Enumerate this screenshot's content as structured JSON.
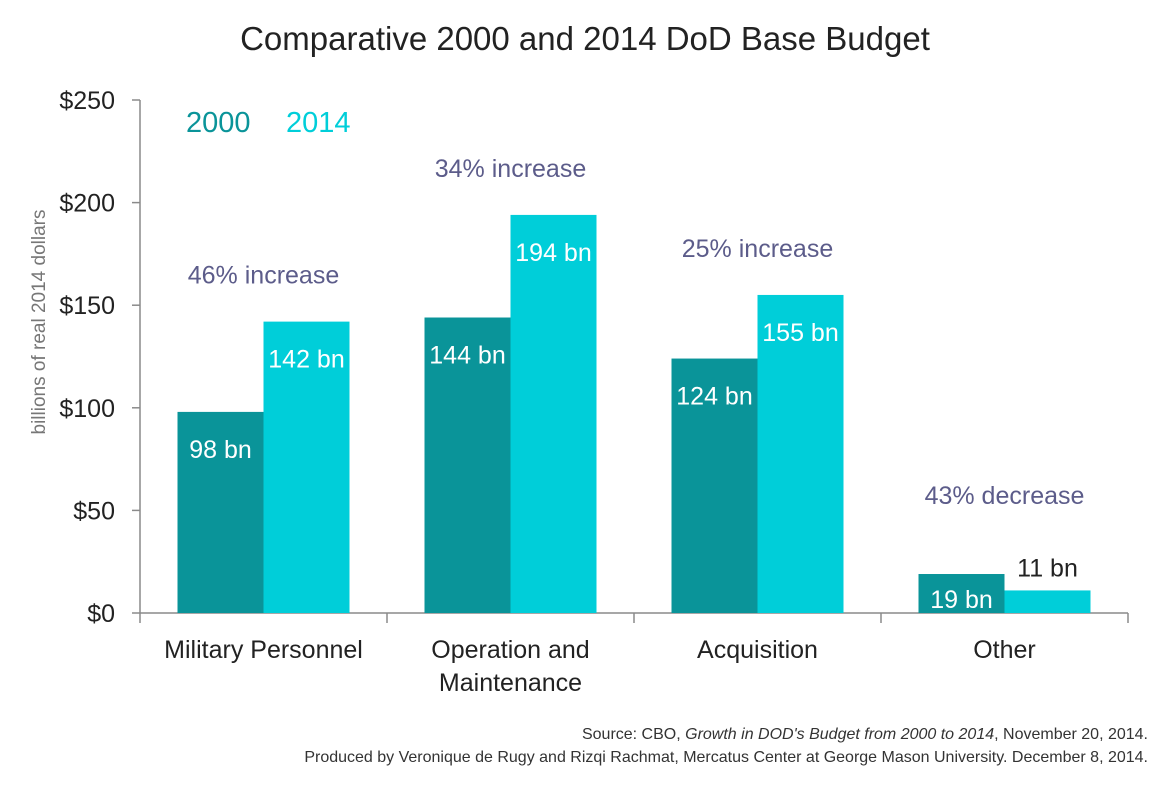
{
  "chart_data": {
    "type": "bar",
    "title": "Comparative 2000 and 2014 DoD Base Budget",
    "ylabel": "billions of real 2014 dollars",
    "xlabel": "",
    "ylim": [
      0,
      250
    ],
    "yticks": [
      0,
      50,
      100,
      150,
      200,
      250
    ],
    "ytick_labels": [
      "$0",
      "$50",
      "$100",
      "$150",
      "$200",
      "$250"
    ],
    "categories": [
      "Military Personnel",
      "Operation and\nMaintenance",
      "Acquisition",
      "Other"
    ],
    "series": [
      {
        "name": "2000",
        "values": [
          98,
          144,
          124,
          19
        ],
        "labels": [
          "98 bn",
          "144 bn",
          "124 bn",
          "19 bn"
        ],
        "color": "#0a9499"
      },
      {
        "name": "2014",
        "values": [
          142,
          194,
          155,
          11
        ],
        "labels": [
          "142 bn",
          "194 bn",
          "155 bn",
          "11 bn"
        ],
        "color": "#00ced9"
      }
    ],
    "annotations": [
      "46% increase",
      "34% increase",
      "25% increase",
      "43% decrease"
    ],
    "annotation_color": "#5c5c8a",
    "legend_position": "top-left",
    "grid": false
  },
  "source": {
    "prefix": "Source: CBO, ",
    "title": "Growth in DOD's Budget from 2000 to 2014",
    "suffix": ", November 20, 2014.",
    "producer": "Produced by Veronique de Rugy and Rizqi Rachmat, Mercatus Center at George Mason University. December 8, 2014."
  }
}
